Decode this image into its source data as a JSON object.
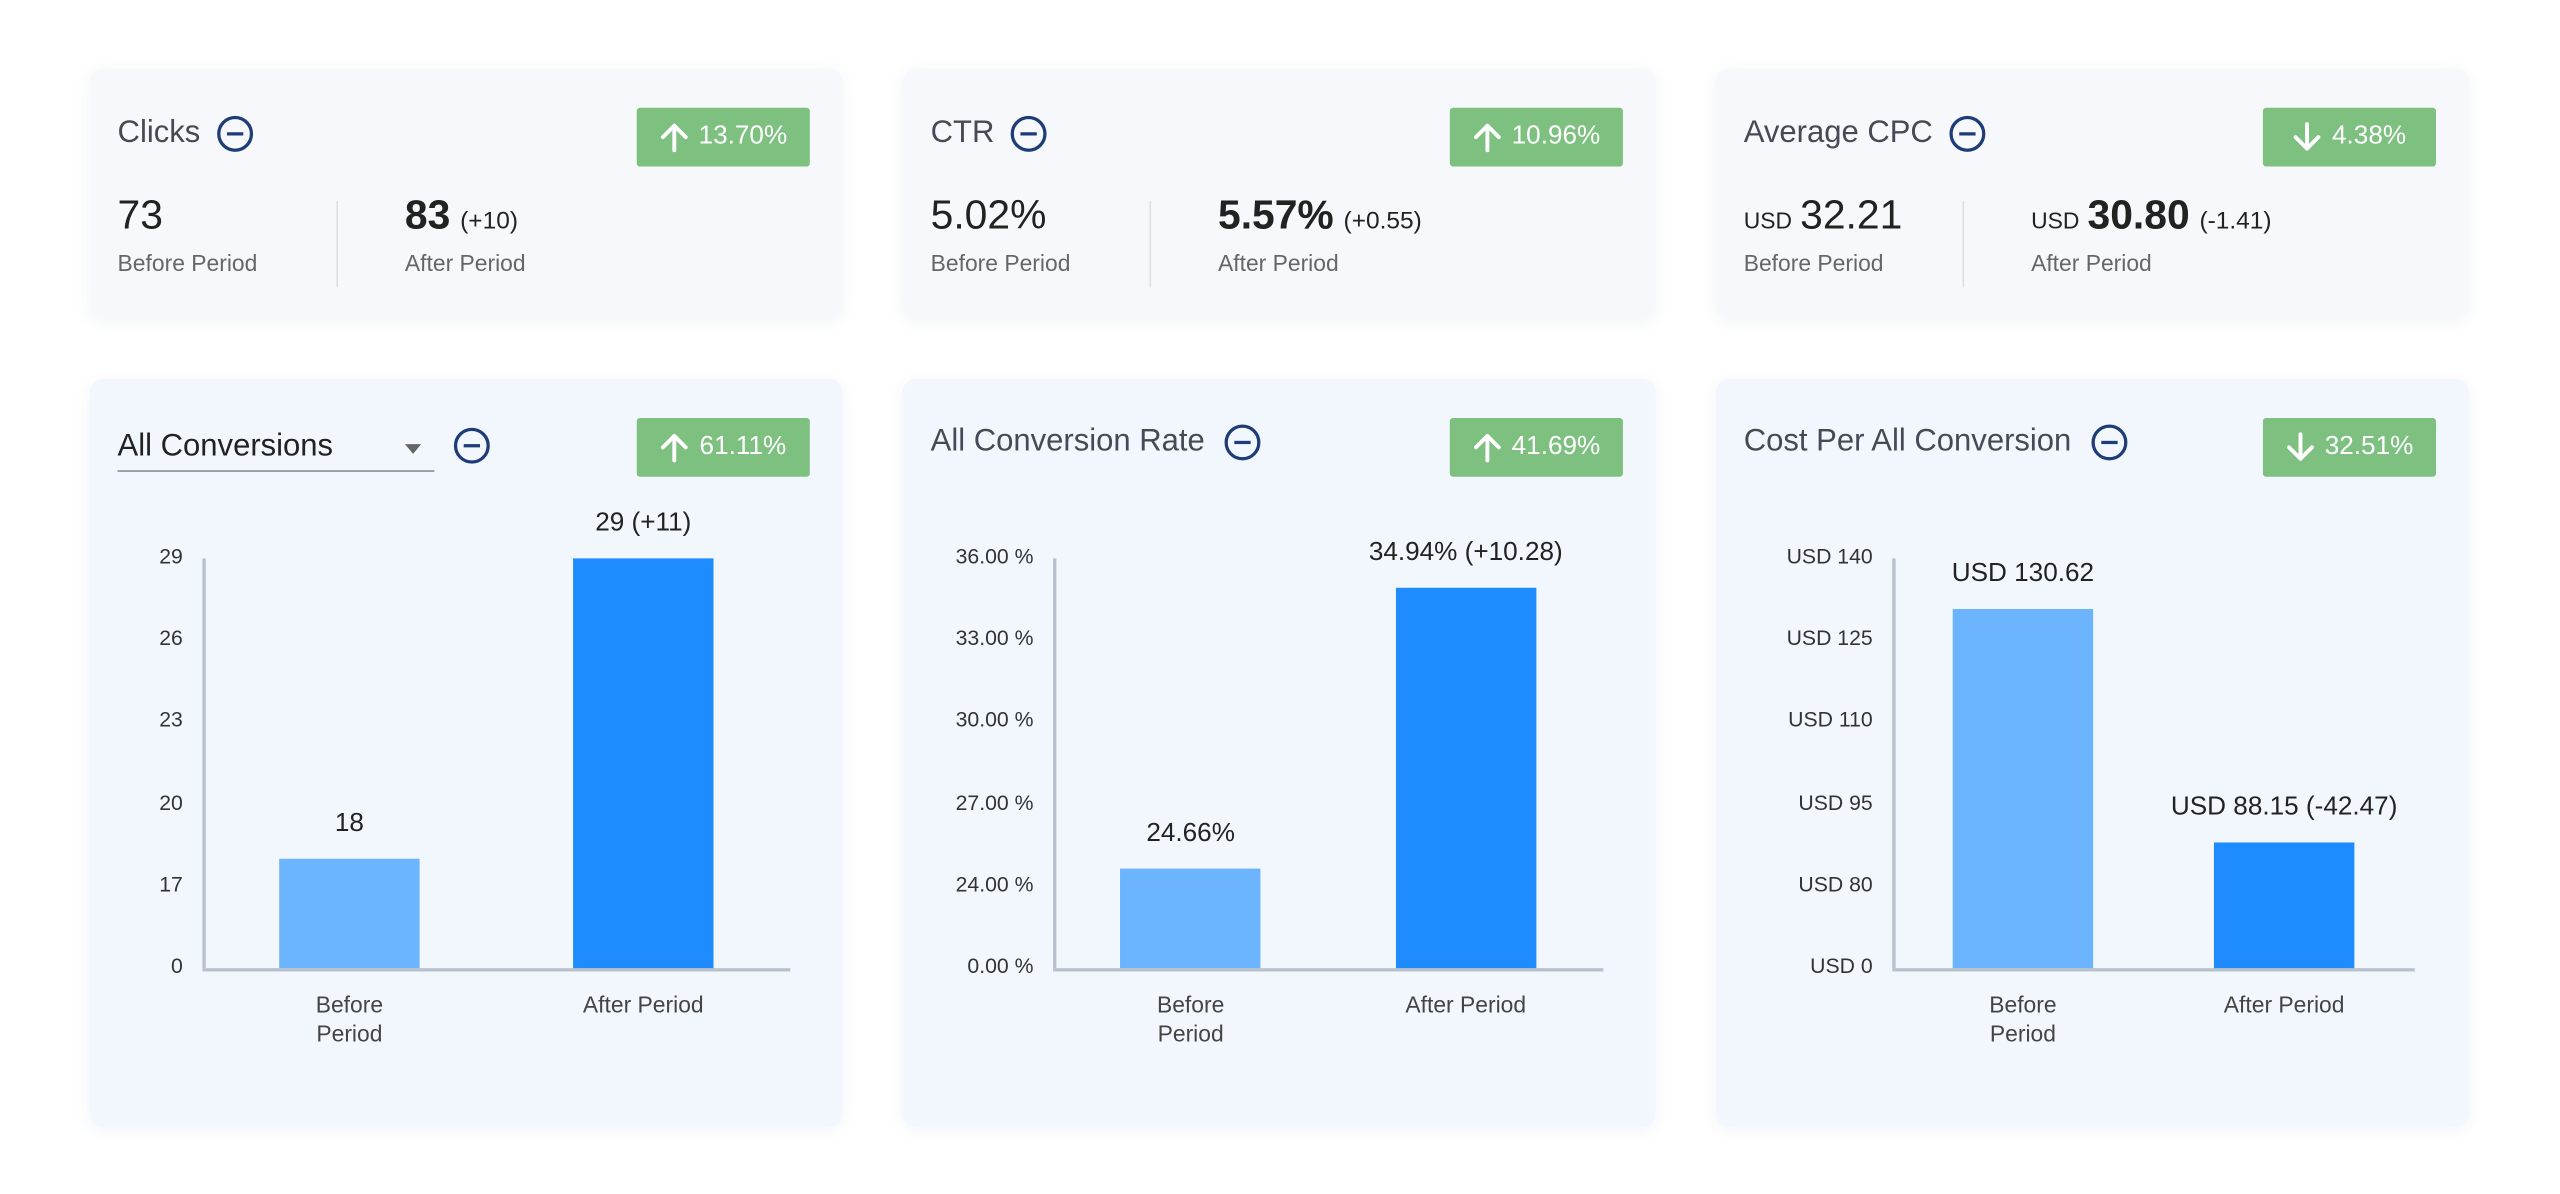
{
  "kpis": [
    {
      "title": "Clicks",
      "change": "13.70%",
      "direction": "up",
      "before": {
        "value": "73",
        "label": "Before Period"
      },
      "after": {
        "value": "83",
        "delta": "(+10)",
        "label": "After Period"
      }
    },
    {
      "title": "CTR",
      "change": "10.96%",
      "direction": "up",
      "before": {
        "value": "5.02%",
        "label": "Before Period"
      },
      "after": {
        "value": "5.57%",
        "delta": "(+0.55)",
        "label": "After Period"
      }
    },
    {
      "title": "Average CPC",
      "change": "4.38%",
      "direction": "down",
      "before": {
        "currency": "USD",
        "value": "32.21",
        "label": "Before Period"
      },
      "after": {
        "currency": "USD",
        "value": "30.80",
        "delta": "(-1.41)",
        "label": "After Period"
      }
    }
  ],
  "chart_data": [
    {
      "type": "bar",
      "title": "All Conversions",
      "dropdown": true,
      "change": "61.11%",
      "direction": "up",
      "categories": [
        "Before Period",
        "After Period"
      ],
      "values": [
        18,
        29
      ],
      "value_labels": [
        "18",
        "29 (+11)"
      ],
      "colors": [
        "#6cb4fd",
        "#1e8bff"
      ],
      "ylim": [
        0,
        29
      ],
      "yticks": [
        0,
        17,
        20,
        23,
        26,
        29
      ]
    },
    {
      "type": "bar",
      "title": "All Conversion Rate",
      "dropdown": false,
      "change": "41.69%",
      "direction": "up",
      "categories": [
        "Before Period",
        "After Period"
      ],
      "values": [
        24.66,
        34.94
      ],
      "value_labels": [
        "24.66%",
        "34.94% (+10.28)"
      ],
      "colors": [
        "#6cb4fd",
        "#1e8bff"
      ],
      "ylim": [
        0,
        36
      ],
      "yticks": [
        {
          "value": 0,
          "label": "0.00 %"
        },
        {
          "value": 24,
          "label": "24.00 %"
        },
        {
          "value": 27,
          "label": "27.00 %"
        },
        {
          "value": 30,
          "label": "30.00 %"
        },
        {
          "value": 33,
          "label": "33.00 %"
        },
        {
          "value": 36,
          "label": "36.00 %"
        }
      ]
    },
    {
      "type": "bar",
      "title": "Cost Per All Conversion",
      "dropdown": false,
      "change": "32.51%",
      "direction": "down",
      "categories": [
        "Before Period",
        "After Period"
      ],
      "values": [
        130.62,
        88.15
      ],
      "value_labels": [
        "USD 130.62",
        "USD 88.15 (-42.47)"
      ],
      "colors": [
        "#6cb4fd",
        "#1e8bff"
      ],
      "ylim": [
        0,
        140
      ],
      "yticks": [
        {
          "value": 0,
          "label": "USD 0"
        },
        {
          "value": 80,
          "label": "USD 80"
        },
        {
          "value": 95,
          "label": "USD 95"
        },
        {
          "value": 110,
          "label": "USD 110"
        },
        {
          "value": 125,
          "label": "USD 125"
        },
        {
          "value": 140,
          "label": "USD 140"
        }
      ]
    }
  ]
}
